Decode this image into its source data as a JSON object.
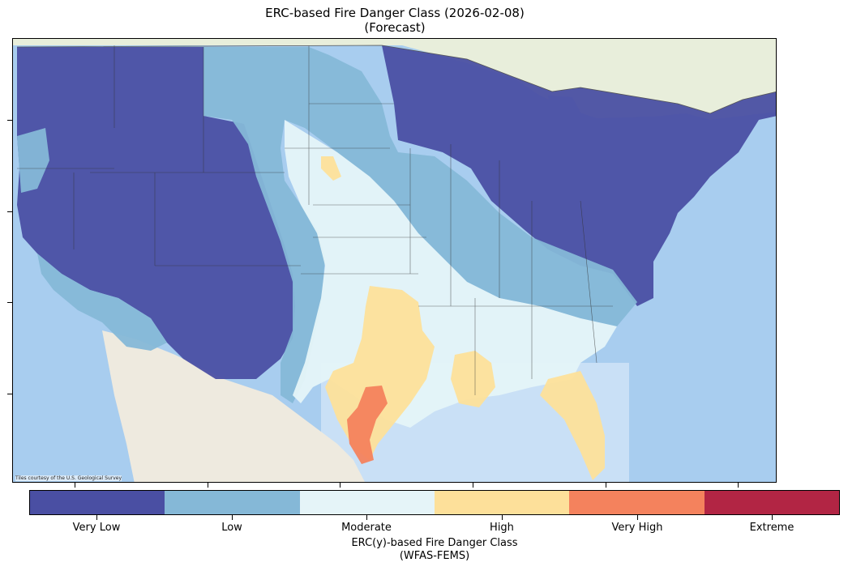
{
  "title_line1": "ERC-based Fire Danger Class (2026-02-08)",
  "title_line2": "(Forecast)",
  "attribution": "Tiles courtesy of the U.S. Geological Survey",
  "colorbar": {
    "title_line1": "ERC(y)-based Fire Danger Class",
    "title_line2": "(WFAS-FEMS)",
    "classes": [
      {
        "label": "Very Low",
        "color": "#4a4fa3"
      },
      {
        "label": "Low",
        "color": "#85b8d7"
      },
      {
        "label": "Moderate",
        "color": "#e5f4f8"
      },
      {
        "label": "High",
        "color": "#fde09a"
      },
      {
        "label": "Very High",
        "color": "#f4825d"
      },
      {
        "label": "Extreme",
        "color": "#b22544"
      }
    ]
  },
  "colors": {
    "ocean": "#9ac4ec",
    "land_base": "#eae6dc",
    "canada": "#e8eedb",
    "lakes": "#a9cdef"
  }
}
